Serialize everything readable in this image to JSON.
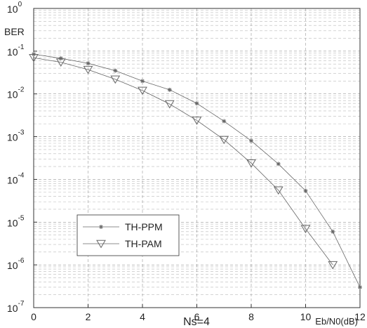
{
  "chart_data": {
    "type": "line",
    "ylabel": "BER",
    "xlabel": "Eb/N0(dB)",
    "caption": "Ns=4",
    "log_y": true,
    "grid": true,
    "minor_grid": true,
    "legend": "lower left",
    "xlim": [
      0,
      12
    ],
    "xticks": [
      0,
      2,
      4,
      6,
      8,
      10,
      12
    ],
    "ylim": [
      1e-07,
      1
    ],
    "yticks": [
      {
        "value": 1,
        "label": [
          "10",
          "0"
        ]
      },
      {
        "value": 0.1,
        "label": [
          "10",
          "-1"
        ]
      },
      {
        "value": 0.01,
        "label": [
          "10",
          "-2"
        ]
      },
      {
        "value": 0.001,
        "label": [
          "10",
          "-3"
        ]
      },
      {
        "value": 0.0001,
        "label": [
          "10",
          "-4"
        ]
      },
      {
        "value": 1e-05,
        "label": [
          "10",
          "-5"
        ]
      },
      {
        "value": 1e-06,
        "label": [
          "10",
          "-6"
        ]
      },
      {
        "value": 1e-07,
        "label": [
          "10",
          "-7"
        ]
      }
    ],
    "series": [
      {
        "name": "TH-PPM",
        "color": "#666666",
        "marker": "star",
        "x": [
          0,
          1,
          2,
          3,
          4,
          5,
          6,
          7,
          8,
          9,
          10,
          11,
          12
        ],
        "values": [
          0.085,
          0.068,
          0.052,
          0.035,
          0.02,
          0.0125,
          0.006,
          0.0023,
          0.0008,
          0.00023,
          5.4e-05,
          6e-06,
          3e-07
        ]
      },
      {
        "name": "TH-PAM",
        "color": "#666666",
        "marker": "triangle-down",
        "x": [
          0,
          1,
          2,
          3,
          4,
          5,
          6,
          7,
          8,
          9,
          10,
          11
        ],
        "values": [
          0.07,
          0.055,
          0.037,
          0.022,
          0.012,
          0.0058,
          0.0024,
          0.00085,
          0.00024,
          5.6e-05,
          7e-06,
          1e-06
        ]
      }
    ]
  }
}
